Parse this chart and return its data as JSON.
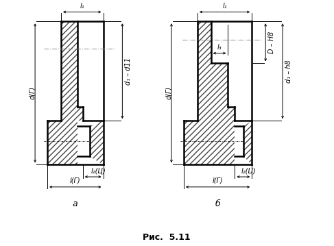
{
  "title": "Рис.  5.11",
  "label_a": "а",
  "label_b": "б",
  "bg_color": "#ffffff",
  "line_color": "#000000",
  "fig_width": 4.87,
  "fig_height": 3.59,
  "dpi": 100,
  "ann_a": {
    "l1": "l₁",
    "d_g": "d(Г)",
    "d1_d11": "d₁ – d11",
    "l2_c": "l₂(Ц)",
    "l_g": "l(Г)"
  },
  "ann_b": {
    "l1": "l₁",
    "l3": "l₃",
    "d_g": "d(Г)",
    "D_H8": "D – H8",
    "d1_h8": "d₁ – h8",
    "l2_c": "l₂(Ц)",
    "l_g": "l(Г)"
  }
}
